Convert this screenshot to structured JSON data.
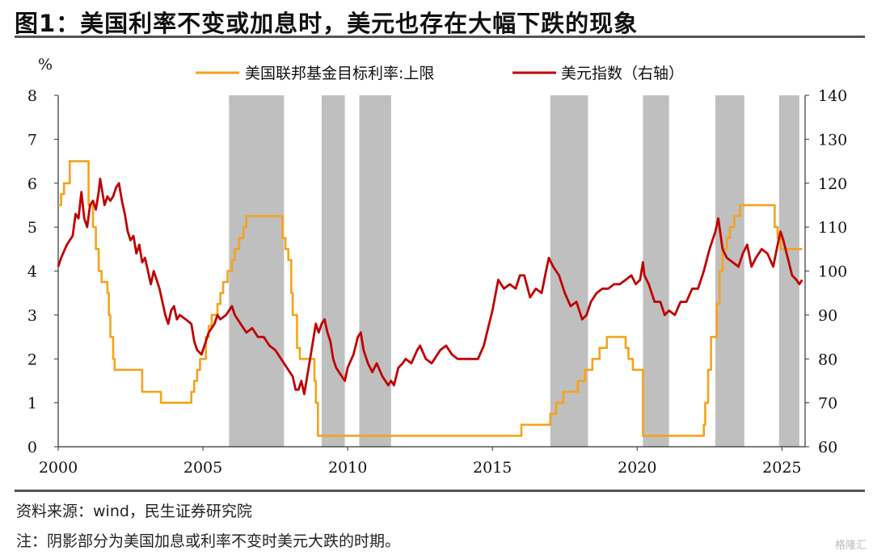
{
  "header": {
    "title": "图1：美国利率不变或加息时，美元也存在大幅下跌的现象"
  },
  "footer": {
    "source": "资料来源：wind，民生证券研究院",
    "note": "注：阴影部分为美国加息或利率不变时美元大跌的时期。",
    "watermark": "格隆汇"
  },
  "chart_data": {
    "type": "line",
    "left_axis": {
      "unit": "%",
      "range": [
        0,
        8
      ],
      "ticks": [
        0,
        1,
        2,
        3,
        4,
        5,
        6,
        7,
        8
      ]
    },
    "right_axis": {
      "range": [
        60,
        140
      ],
      "ticks": [
        60,
        70,
        80,
        90,
        100,
        110,
        120,
        130,
        140
      ]
    },
    "x_axis": {
      "range": [
        2000,
        2025.8
      ],
      "ticks": [
        2000,
        2005,
        2010,
        2015,
        2020,
        2025
      ]
    },
    "legend": {
      "placement": "top"
    },
    "shaded_periods": [
      [
        2005.9,
        2007.8
      ],
      [
        2009.1,
        2009.9
      ],
      [
        2010.4,
        2011.5
      ],
      [
        2017.0,
        2018.3
      ],
      [
        2020.2,
        2021.1
      ],
      [
        2022.7,
        2023.7
      ],
      [
        2024.9,
        2025.6
      ]
    ],
    "series": [
      {
        "name": "美国联邦基金目标利率:上限",
        "axis": "left",
        "color": "#f5a31a",
        "step": true,
        "points": [
          [
            2000.0,
            5.5
          ],
          [
            2000.1,
            5.75
          ],
          [
            2000.2,
            6.0
          ],
          [
            2000.3,
            6.0
          ],
          [
            2000.4,
            6.5
          ],
          [
            2001.0,
            6.5
          ],
          [
            2001.05,
            5.5
          ],
          [
            2001.1,
            5.5
          ],
          [
            2001.2,
            5.0
          ],
          [
            2001.3,
            4.5
          ],
          [
            2001.4,
            4.0
          ],
          [
            2001.5,
            3.75
          ],
          [
            2001.7,
            3.5
          ],
          [
            2001.75,
            3.0
          ],
          [
            2001.8,
            2.5
          ],
          [
            2001.9,
            2.0
          ],
          [
            2001.95,
            1.75
          ],
          [
            2002.85,
            1.75
          ],
          [
            2002.9,
            1.25
          ],
          [
            2003.5,
            1.25
          ],
          [
            2003.55,
            1.0
          ],
          [
            2004.5,
            1.0
          ],
          [
            2004.6,
            1.25
          ],
          [
            2004.7,
            1.5
          ],
          [
            2004.8,
            1.75
          ],
          [
            2004.9,
            2.0
          ],
          [
            2005.1,
            2.5
          ],
          [
            2005.2,
            2.75
          ],
          [
            2005.3,
            3.0
          ],
          [
            2005.5,
            3.25
          ],
          [
            2005.6,
            3.5
          ],
          [
            2005.7,
            3.75
          ],
          [
            2005.85,
            4.0
          ],
          [
            2006.0,
            4.25
          ],
          [
            2006.1,
            4.5
          ],
          [
            2006.25,
            4.75
          ],
          [
            2006.4,
            5.0
          ],
          [
            2006.5,
            5.25
          ],
          [
            2007.7,
            5.25
          ],
          [
            2007.75,
            4.75
          ],
          [
            2007.85,
            4.5
          ],
          [
            2007.95,
            4.25
          ],
          [
            2008.05,
            3.5
          ],
          [
            2008.1,
            3.0
          ],
          [
            2008.25,
            2.25
          ],
          [
            2008.35,
            2.0
          ],
          [
            2008.8,
            2.0
          ],
          [
            2008.85,
            1.5
          ],
          [
            2008.9,
            1.0
          ],
          [
            2008.97,
            0.25
          ],
          [
            2015.95,
            0.25
          ],
          [
            2016.0,
            0.5
          ],
          [
            2016.95,
            0.5
          ],
          [
            2017.0,
            0.75
          ],
          [
            2017.2,
            1.0
          ],
          [
            2017.45,
            1.25
          ],
          [
            2017.95,
            1.5
          ],
          [
            2018.2,
            1.75
          ],
          [
            2018.45,
            2.0
          ],
          [
            2018.7,
            2.25
          ],
          [
            2018.95,
            2.5
          ],
          [
            2019.55,
            2.5
          ],
          [
            2019.6,
            2.25
          ],
          [
            2019.7,
            2.0
          ],
          [
            2019.85,
            1.75
          ],
          [
            2020.15,
            1.75
          ],
          [
            2020.2,
            0.25
          ],
          [
            2022.2,
            0.25
          ],
          [
            2022.3,
            0.5
          ],
          [
            2022.35,
            1.0
          ],
          [
            2022.45,
            1.75
          ],
          [
            2022.55,
            2.5
          ],
          [
            2022.75,
            3.25
          ],
          [
            2022.85,
            4.0
          ],
          [
            2022.95,
            4.5
          ],
          [
            2023.1,
            4.75
          ],
          [
            2023.2,
            5.0
          ],
          [
            2023.35,
            5.25
          ],
          [
            2023.55,
            5.5
          ],
          [
            2024.7,
            5.5
          ],
          [
            2024.75,
            5.0
          ],
          [
            2024.85,
            4.75
          ],
          [
            2024.95,
            4.5
          ],
          [
            2025.7,
            4.5
          ]
        ]
      },
      {
        "name": "美元指数（右轴）",
        "axis": "right",
        "color": "#c00000",
        "points": [
          [
            2000.0,
            101
          ],
          [
            2000.1,
            103
          ],
          [
            2000.3,
            106
          ],
          [
            2000.5,
            108
          ],
          [
            2000.6,
            113
          ],
          [
            2000.7,
            112
          ],
          [
            2000.8,
            118
          ],
          [
            2000.9,
            112
          ],
          [
            2001.0,
            110
          ],
          [
            2001.1,
            115
          ],
          [
            2001.2,
            116
          ],
          [
            2001.3,
            114
          ],
          [
            2001.4,
            118
          ],
          [
            2001.45,
            121
          ],
          [
            2001.6,
            115
          ],
          [
            2001.7,
            117
          ],
          [
            2001.8,
            116
          ],
          [
            2001.9,
            117
          ],
          [
            2002.0,
            119
          ],
          [
            2002.1,
            120
          ],
          [
            2002.2,
            116
          ],
          [
            2002.3,
            113
          ],
          [
            2002.4,
            109
          ],
          [
            2002.5,
            107
          ],
          [
            2002.6,
            108
          ],
          [
            2002.7,
            104
          ],
          [
            2002.8,
            106
          ],
          [
            2002.9,
            102
          ],
          [
            2003.0,
            103
          ],
          [
            2003.1,
            100
          ],
          [
            2003.2,
            97
          ],
          [
            2003.3,
            100
          ],
          [
            2003.4,
            98
          ],
          [
            2003.5,
            96
          ],
          [
            2003.6,
            93
          ],
          [
            2003.7,
            90
          ],
          [
            2003.8,
            88
          ],
          [
            2003.9,
            91
          ],
          [
            2004.0,
            92
          ],
          [
            2004.1,
            89
          ],
          [
            2004.2,
            90
          ],
          [
            2004.4,
            89
          ],
          [
            2004.6,
            88
          ],
          [
            2004.7,
            84
          ],
          [
            2004.8,
            82
          ],
          [
            2004.95,
            81
          ],
          [
            2005.1,
            84
          ],
          [
            2005.2,
            86
          ],
          [
            2005.4,
            88
          ],
          [
            2005.5,
            90
          ],
          [
            2005.6,
            89
          ],
          [
            2005.8,
            90
          ],
          [
            2005.9,
            91
          ],
          [
            2006.0,
            92
          ],
          [
            2006.1,
            90
          ],
          [
            2006.3,
            88
          ],
          [
            2006.5,
            86
          ],
          [
            2006.7,
            87
          ],
          [
            2006.9,
            85
          ],
          [
            2007.1,
            85
          ],
          [
            2007.3,
            83
          ],
          [
            2007.5,
            82
          ],
          [
            2007.7,
            80
          ],
          [
            2007.9,
            78
          ],
          [
            2008.1,
            76
          ],
          [
            2008.2,
            73
          ],
          [
            2008.3,
            73
          ],
          [
            2008.4,
            75
          ],
          [
            2008.5,
            72
          ],
          [
            2008.6,
            76
          ],
          [
            2008.7,
            80
          ],
          [
            2008.8,
            84
          ],
          [
            2008.9,
            88
          ],
          [
            2009.0,
            86
          ],
          [
            2009.1,
            88
          ],
          [
            2009.2,
            89
          ],
          [
            2009.3,
            86
          ],
          [
            2009.4,
            84
          ],
          [
            2009.5,
            80
          ],
          [
            2009.6,
            78
          ],
          [
            2009.7,
            77
          ],
          [
            2009.8,
            76
          ],
          [
            2009.9,
            75
          ],
          [
            2010.0,
            78
          ],
          [
            2010.2,
            81
          ],
          [
            2010.35,
            85
          ],
          [
            2010.45,
            86
          ],
          [
            2010.55,
            82
          ],
          [
            2010.7,
            79
          ],
          [
            2010.85,
            77
          ],
          [
            2011.0,
            79
          ],
          [
            2011.2,
            76
          ],
          [
            2011.3,
            75
          ],
          [
            2011.4,
            74
          ],
          [
            2011.5,
            75
          ],
          [
            2011.6,
            74
          ],
          [
            2011.75,
            78
          ],
          [
            2011.9,
            79
          ],
          [
            2012.0,
            80
          ],
          [
            2012.2,
            79
          ],
          [
            2012.4,
            82
          ],
          [
            2012.5,
            83
          ],
          [
            2012.7,
            80
          ],
          [
            2012.9,
            79
          ],
          [
            2013.0,
            80
          ],
          [
            2013.2,
            82
          ],
          [
            2013.4,
            83
          ],
          [
            2013.6,
            81
          ],
          [
            2013.8,
            80
          ],
          [
            2014.0,
            80
          ],
          [
            2014.3,
            80
          ],
          [
            2014.5,
            80
          ],
          [
            2014.7,
            83
          ],
          [
            2014.85,
            87
          ],
          [
            2015.0,
            91
          ],
          [
            2015.2,
            98
          ],
          [
            2015.4,
            96
          ],
          [
            2015.6,
            97
          ],
          [
            2015.8,
            96
          ],
          [
            2015.95,
            99
          ],
          [
            2016.1,
            99
          ],
          [
            2016.3,
            94
          ],
          [
            2016.5,
            96
          ],
          [
            2016.7,
            95
          ],
          [
            2016.85,
            100
          ],
          [
            2016.95,
            103
          ],
          [
            2017.1,
            101
          ],
          [
            2017.3,
            99
          ],
          [
            2017.5,
            95
          ],
          [
            2017.7,
            92
          ],
          [
            2017.9,
            93
          ],
          [
            2018.1,
            89
          ],
          [
            2018.25,
            90
          ],
          [
            2018.4,
            93
          ],
          [
            2018.6,
            95
          ],
          [
            2018.8,
            96
          ],
          [
            2019.0,
            96
          ],
          [
            2019.2,
            97
          ],
          [
            2019.4,
            97
          ],
          [
            2019.6,
            98
          ],
          [
            2019.8,
            99
          ],
          [
            2019.95,
            97
          ],
          [
            2020.1,
            98
          ],
          [
            2020.2,
            102
          ],
          [
            2020.25,
            99
          ],
          [
            2020.4,
            97
          ],
          [
            2020.6,
            93
          ],
          [
            2020.8,
            93
          ],
          [
            2020.95,
            90
          ],
          [
            2021.1,
            91
          ],
          [
            2021.3,
            90
          ],
          [
            2021.5,
            93
          ],
          [
            2021.7,
            93
          ],
          [
            2021.9,
            96
          ],
          [
            2022.1,
            96
          ],
          [
            2022.3,
            100
          ],
          [
            2022.5,
            105
          ],
          [
            2022.7,
            109
          ],
          [
            2022.8,
            112
          ],
          [
            2022.95,
            105
          ],
          [
            2023.1,
            103
          ],
          [
            2023.3,
            102
          ],
          [
            2023.5,
            101
          ],
          [
            2023.65,
            104
          ],
          [
            2023.8,
            106
          ],
          [
            2023.95,
            101
          ],
          [
            2024.1,
            103
          ],
          [
            2024.3,
            105
          ],
          [
            2024.5,
            104
          ],
          [
            2024.7,
            101
          ],
          [
            2024.85,
            106
          ],
          [
            2024.95,
            109
          ],
          [
            2025.05,
            107
          ],
          [
            2025.2,
            103
          ],
          [
            2025.35,
            99
          ],
          [
            2025.5,
            98
          ],
          [
            2025.6,
            97
          ],
          [
            2025.7,
            98
          ]
        ]
      }
    ]
  }
}
